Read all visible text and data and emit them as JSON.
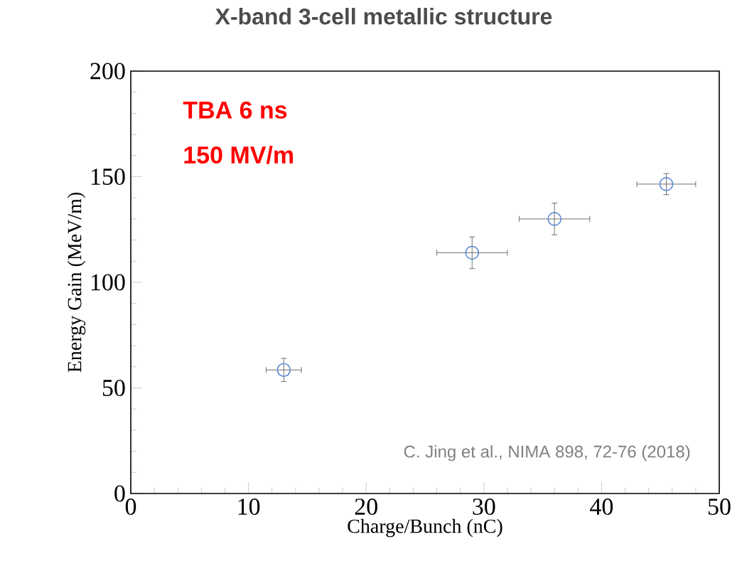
{
  "chart_data": {
    "type": "scatter",
    "title": "X-band 3-cell metallic structure",
    "xlabel": "Charge/Bunch (nC)",
    "ylabel": "Energy Gain (MeV/m)",
    "x": [
      13,
      29,
      36,
      45.5
    ],
    "values": [
      58.5,
      114,
      130,
      146.5
    ],
    "errors": [
      5.5,
      7.5,
      7.5,
      5
    ],
    "xerrors": [
      1.5,
      3,
      3,
      2.5
    ],
    "color": "#5b8bd0",
    "marker": "circle",
    "xlim": [
      0,
      50
    ],
    "xticks": [
      0,
      10,
      20,
      30,
      40,
      50
    ],
    "ylim": [
      0,
      200
    ],
    "yticks": [
      0,
      50,
      100,
      150,
      200
    ],
    "annotations": [
      "TBA 6 ns",
      "150 MV/m",
      "C. Jing et al., NIMA 898, 72-76 (2018)"
    ]
  }
}
